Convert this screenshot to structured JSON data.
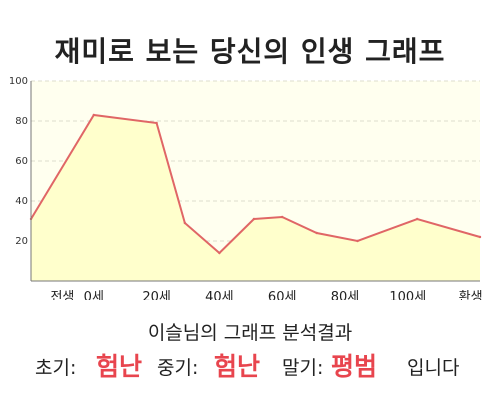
{
  "chart_data": {
    "type": "area",
    "title": "재미로 보는 당신의 인생 그래프",
    "categories": [
      "전생",
      "0세",
      "20세",
      "40세",
      "60세",
      "80세",
      "100세",
      "환생"
    ],
    "x": [
      -10,
      0,
      20,
      40,
      60,
      80,
      100,
      120
    ],
    "series": [
      {
        "points": [
          [
            -20,
            31
          ],
          [
            0,
            83
          ],
          [
            20,
            79
          ],
          [
            29,
            29
          ],
          [
            40,
            14
          ],
          [
            51,
            31
          ],
          [
            60,
            32
          ],
          [
            71,
            24
          ],
          [
            84,
            20
          ],
          [
            103,
            31
          ],
          [
            123,
            22
          ]
        ]
      }
    ],
    "yticks": [
      20,
      40,
      60,
      80,
      100
    ],
    "ylim": [
      0,
      100
    ],
    "xlim": [
      -20,
      123
    ],
    "grid": true,
    "fill_color": "#ffffcc",
    "line_color": "#e06666"
  },
  "analysis": {
    "heading": "이슬님의 그래프 분석결과",
    "early_label": "초기:",
    "early_value": "험난",
    "mid_label": "중기:",
    "mid_value": "험난",
    "late_label": "말기:",
    "late_value": "평범",
    "suffix": "입니다"
  }
}
